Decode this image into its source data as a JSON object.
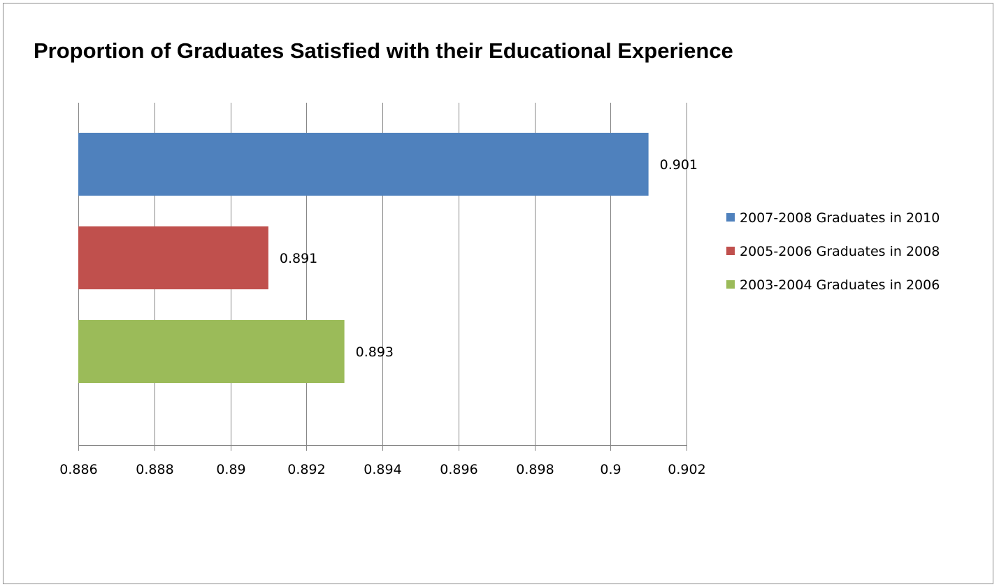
{
  "chart_data": {
    "type": "bar",
    "orientation": "horizontal",
    "title": "Proportion of Graduates Satisfied with their Educational Experience",
    "xlabel": "",
    "ylabel": "",
    "xlim": [
      0.886,
      0.902
    ],
    "x_ticks": [
      0.886,
      0.888,
      0.89,
      0.892,
      0.894,
      0.896,
      0.898,
      0.9,
      0.902
    ],
    "x_tick_labels": [
      "0.886",
      "0.888",
      "0.89",
      "0.892",
      "0.894",
      "0.896",
      "0.898",
      "0.9",
      "0.902"
    ],
    "grid": "vertical",
    "legend_position": "right",
    "series": [
      {
        "name": "2007-2008 Graduates in 2010",
        "value": 0.901,
        "label": "0.901",
        "color": "#4F81BD"
      },
      {
        "name": "2005-2006 Graduates in 2008",
        "value": 0.891,
        "label": "0.891",
        "color": "#C0504D"
      },
      {
        "name": "2003-2004 Graduates in 2006",
        "value": 0.893,
        "label": "0.893",
        "color": "#9BBB59"
      }
    ]
  }
}
